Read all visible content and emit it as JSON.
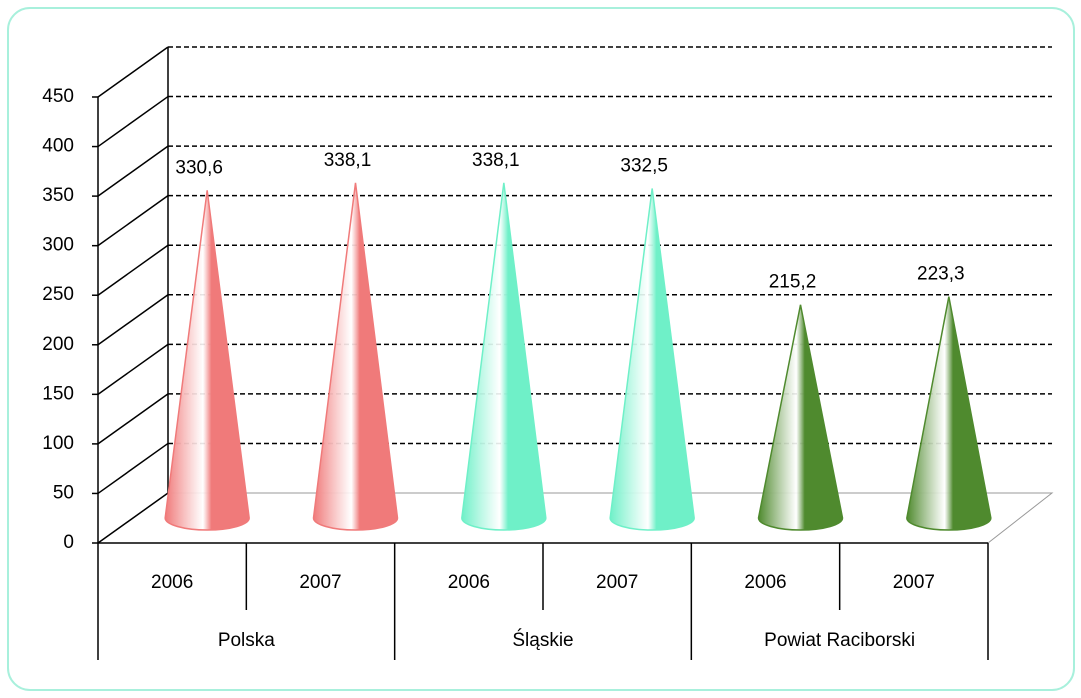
{
  "chart_data": {
    "type": "cone",
    "categories": [
      "2006",
      "2007",
      "2006",
      "2007",
      "2006",
      "2007"
    ],
    "groups": [
      "Polska",
      "Śląskie",
      "Powiat Raciborski"
    ],
    "values": [
      330.6,
      338.1,
      338.1,
      332.5,
      215.2,
      223.3
    ],
    "value_labels": [
      "330,6",
      "338,1",
      "338,1",
      "332,5",
      "215,2",
      "223,3"
    ],
    "colors": [
      "#f07a7a",
      "#f07a7a",
      "#6ff0c8",
      "#6ff0c8",
      "#4f8a2e",
      "#4f8a2e"
    ],
    "ylim": [
      0,
      450
    ],
    "yticks": [
      0,
      50,
      100,
      150,
      200,
      250,
      300,
      350,
      400,
      450
    ],
    "grid": true
  }
}
